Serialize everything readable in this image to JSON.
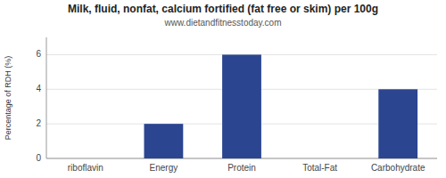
{
  "chart_data": {
    "type": "bar",
    "title": "Milk, fluid, nonfat, calcium fortified (fat free or skim) per 100g",
    "subtitle": "www.dietandfitnesstoday.com",
    "categories": [
      "riboflavin",
      "Energy",
      "Protein",
      "Total-Fat",
      "Carbohydrate"
    ],
    "values": [
      0,
      2.0,
      6.0,
      0,
      4.0
    ],
    "color": "#2b4590",
    "ylabel": "Percentage of RDH (%)",
    "ylim": [
      0,
      7
    ],
    "yticks": [
      0,
      2,
      4,
      6
    ],
    "grid": true
  }
}
